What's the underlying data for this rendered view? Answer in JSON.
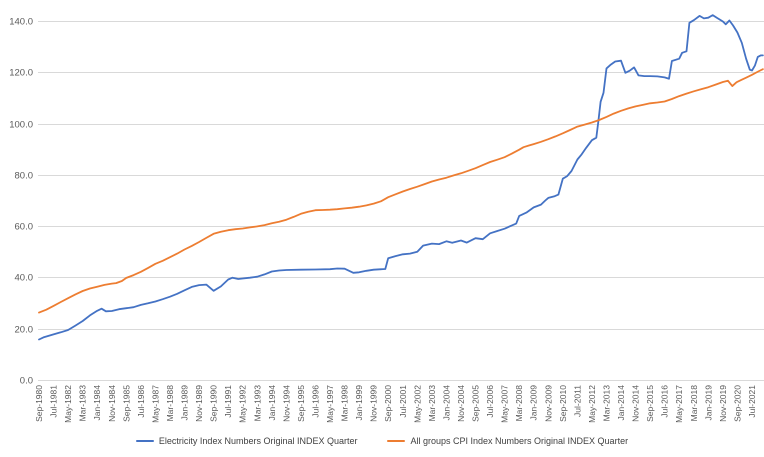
{
  "chart_data": {
    "type": "line",
    "title": "",
    "xlabel": "",
    "ylabel": "",
    "ylim": [
      0,
      140
    ],
    "yticks": [
      0,
      20,
      40,
      60,
      80,
      100,
      120,
      140
    ],
    "ytick_labels": [
      "0.0",
      "20.0",
      "40.0",
      "60.0",
      "80.0",
      "100.0",
      "120.0",
      "140.0"
    ],
    "grid": true,
    "legend_position": "bottom",
    "axis_text_color": "#595959",
    "gridline_color": "#D9D9D9",
    "categories": [
      "Sep-1980",
      "Jul-1981",
      "May-1982",
      "Mar-1983",
      "Jan-1984",
      "Nov-1984",
      "Sep-1985",
      "Jul-1986",
      "May-1987",
      "Mar-1988",
      "Jan-1989",
      "Nov-1989",
      "Sep-1990",
      "Jul-1991",
      "May-1992",
      "Mar-1993",
      "Jan-1994",
      "Nov-1994",
      "Sep-1995",
      "Jul-1996",
      "May-1997",
      "Mar-1998",
      "Jan-1999",
      "Nov-1999",
      "Sep-2000",
      "Jul-2001",
      "May-2002",
      "Mar-2003",
      "Jan-2004",
      "Nov-2004",
      "Sep-2005",
      "Jul-2006",
      "May-2007",
      "Mar-2008",
      "Jan-2009",
      "Nov-2009",
      "Sep-2010",
      "Jul-2011",
      "May-2012",
      "Mar-2013",
      "Jan-2014",
      "Nov-2014",
      "Sep-2015",
      "Jul-2016",
      "May-2017",
      "Mar-2018",
      "Jan-2019",
      "Nov-2019",
      "Sep-2020",
      "Jul-2021"
    ],
    "series": [
      {
        "name": "Electricity Index Numbers Original INDEX Quarter",
        "color": "#4472C4",
        "values": [
          15.8,
          17.8,
          19.5,
          23.0,
          27.0,
          26.9,
          28.0,
          29.3,
          30.6,
          32.5,
          35.0,
          37.0,
          34.8,
          39.2,
          39.6,
          40.3,
          42.3,
          42.9,
          43.0,
          43.1,
          43.2,
          43.4,
          42.0,
          43.0,
          47.5,
          49.0,
          50.0,
          53.2,
          54.1,
          54.4,
          55.3,
          57.2,
          59.0,
          64.0,
          67.3,
          71.0,
          78.5,
          86.0,
          93.5,
          121.5,
          124.5,
          118.8,
          118.5,
          118.0,
          125.3,
          140.3,
          141.3,
          139.8,
          135.5,
          120.7
        ],
        "points": [
          [
            0,
            15.8
          ],
          [
            0.3,
            16.6
          ],
          [
            1,
            17.8
          ],
          [
            1.5,
            18.6
          ],
          [
            2,
            19.5
          ],
          [
            2.5,
            21.2
          ],
          [
            3,
            23.0
          ],
          [
            3.5,
            25.2
          ],
          [
            4,
            27.0
          ],
          [
            4.3,
            27.8
          ],
          [
            4.6,
            26.8
          ],
          [
            5,
            26.9
          ],
          [
            5.5,
            27.6
          ],
          [
            6,
            28.0
          ],
          [
            6.5,
            28.4
          ],
          [
            7,
            29.3
          ],
          [
            7.5,
            29.9
          ],
          [
            8,
            30.6
          ],
          [
            8.5,
            31.5
          ],
          [
            9,
            32.5
          ],
          [
            9.5,
            33.6
          ],
          [
            10,
            35.0
          ],
          [
            10.5,
            36.3
          ],
          [
            11,
            37.0
          ],
          [
            11.5,
            37.2
          ],
          [
            12,
            34.8
          ],
          [
            12.5,
            36.5
          ],
          [
            13,
            39.2
          ],
          [
            13.3,
            39.9
          ],
          [
            13.7,
            39.4
          ],
          [
            14,
            39.6
          ],
          [
            14.5,
            39.9
          ],
          [
            15,
            40.3
          ],
          [
            15.5,
            41.2
          ],
          [
            16,
            42.3
          ],
          [
            16.5,
            42.7
          ],
          [
            17,
            42.9
          ],
          [
            18,
            43.0
          ],
          [
            19,
            43.1
          ],
          [
            20,
            43.2
          ],
          [
            20.5,
            43.5
          ],
          [
            21,
            43.4
          ],
          [
            21.6,
            41.8
          ],
          [
            22,
            42.0
          ],
          [
            22.5,
            42.6
          ],
          [
            23,
            43.0
          ],
          [
            23.8,
            43.3
          ],
          [
            24,
            47.5
          ],
          [
            24.5,
            48.3
          ],
          [
            25,
            49.0
          ],
          [
            25.5,
            49.3
          ],
          [
            26,
            50.0
          ],
          [
            26.4,
            52.4
          ],
          [
            27,
            53.2
          ],
          [
            27.5,
            53.0
          ],
          [
            28,
            54.1
          ],
          [
            28.4,
            53.5
          ],
          [
            29,
            54.4
          ],
          [
            29.4,
            53.6
          ],
          [
            30,
            55.3
          ],
          [
            30.5,
            54.9
          ],
          [
            31,
            57.2
          ],
          [
            31.5,
            58.1
          ],
          [
            32,
            59.0
          ],
          [
            32.5,
            60.3
          ],
          [
            32.8,
            61.0
          ],
          [
            33,
            64.0
          ],
          [
            33.5,
            65.3
          ],
          [
            34,
            67.3
          ],
          [
            34.5,
            68.4
          ],
          [
            34.8,
            70.0
          ],
          [
            35,
            71.0
          ],
          [
            35.4,
            71.6
          ],
          [
            35.7,
            72.3
          ],
          [
            36,
            78.5
          ],
          [
            36.3,
            79.5
          ],
          [
            36.6,
            81.5
          ],
          [
            37,
            86.0
          ],
          [
            37.3,
            88.0
          ],
          [
            37.6,
            90.5
          ],
          [
            38,
            93.5
          ],
          [
            38.3,
            94.5
          ],
          [
            38.45,
            101.0
          ],
          [
            38.6,
            108.5
          ],
          [
            38.8,
            112.0
          ],
          [
            39,
            121.5
          ],
          [
            39.3,
            123.0
          ],
          [
            39.6,
            124.2
          ],
          [
            40,
            124.5
          ],
          [
            40.3,
            119.8
          ],
          [
            40.6,
            120.6
          ],
          [
            40.9,
            121.9
          ],
          [
            41.2,
            118.8
          ],
          [
            41.6,
            118.5
          ],
          [
            42,
            118.5
          ],
          [
            42.5,
            118.4
          ],
          [
            43,
            118.0
          ],
          [
            43.3,
            117.5
          ],
          [
            43.5,
            124.4
          ],
          [
            44,
            125.3
          ],
          [
            44.2,
            127.6
          ],
          [
            44.5,
            128.2
          ],
          [
            44.7,
            139.3
          ],
          [
            45,
            140.3
          ],
          [
            45.4,
            142.0
          ],
          [
            45.7,
            141.0
          ],
          [
            46,
            141.3
          ],
          [
            46.3,
            142.3
          ],
          [
            46.6,
            141.2
          ],
          [
            47,
            139.8
          ],
          [
            47.2,
            138.7
          ],
          [
            47.45,
            140.2
          ],
          [
            47.7,
            138.3
          ],
          [
            48,
            135.5
          ],
          [
            48.3,
            131.5
          ],
          [
            48.6,
            125.3
          ],
          [
            48.85,
            121.0
          ],
          [
            49,
            120.7
          ],
          [
            49.2,
            122.6
          ],
          [
            49.4,
            126.0
          ],
          [
            49.6,
            126.6
          ],
          [
            49.75,
            126.6
          ]
        ]
      },
      {
        "name": "All groups CPI Index Numbers Original INDEX Quarter",
        "color": "#ED7D31",
        "values": [
          26.3,
          28.9,
          31.9,
          34.7,
          36.4,
          37.6,
          39.8,
          42.2,
          45.3,
          47.9,
          50.9,
          53.8,
          57.0,
          58.4,
          59.1,
          59.9,
          61.1,
          62.5,
          64.8,
          66.2,
          66.4,
          66.9,
          67.6,
          68.8,
          71.3,
          73.5,
          75.4,
          77.4,
          78.9,
          80.6,
          82.6,
          85.0,
          86.9,
          89.8,
          92.0,
          93.9,
          96.2,
          98.8,
          100.4,
          102.6,
          105.0,
          106.7,
          107.9,
          108.6,
          110.7,
          112.6,
          114.2,
          116.2,
          116.3,
          119.0
        ],
        "points": [
          [
            0,
            26.3
          ],
          [
            0.5,
            27.4
          ],
          [
            1,
            28.9
          ],
          [
            1.5,
            30.4
          ],
          [
            2,
            31.9
          ],
          [
            2.5,
            33.4
          ],
          [
            3,
            34.7
          ],
          [
            3.5,
            35.7
          ],
          [
            4,
            36.4
          ],
          [
            4.5,
            37.1
          ],
          [
            5,
            37.6
          ],
          [
            5.3,
            37.8
          ],
          [
            5.7,
            38.6
          ],
          [
            6,
            39.8
          ],
          [
            6.5,
            40.9
          ],
          [
            7,
            42.2
          ],
          [
            7.5,
            43.7
          ],
          [
            8,
            45.3
          ],
          [
            8.5,
            46.5
          ],
          [
            9,
            47.9
          ],
          [
            9.5,
            49.3
          ],
          [
            10,
            50.9
          ],
          [
            10.5,
            52.3
          ],
          [
            11,
            53.8
          ],
          [
            11.5,
            55.4
          ],
          [
            12,
            57.0
          ],
          [
            12.5,
            57.8
          ],
          [
            13,
            58.4
          ],
          [
            13.5,
            58.8
          ],
          [
            14,
            59.1
          ],
          [
            14.5,
            59.5
          ],
          [
            15,
            59.9
          ],
          [
            15.5,
            60.4
          ],
          [
            16,
            61.1
          ],
          [
            16.5,
            61.7
          ],
          [
            17,
            62.5
          ],
          [
            17.5,
            63.6
          ],
          [
            18,
            64.8
          ],
          [
            18.5,
            65.6
          ],
          [
            19,
            66.2
          ],
          [
            19.5,
            66.3
          ],
          [
            20,
            66.4
          ],
          [
            20.5,
            66.6
          ],
          [
            21,
            66.9
          ],
          [
            21.5,
            67.2
          ],
          [
            22,
            67.6
          ],
          [
            22.5,
            68.1
          ],
          [
            23,
            68.8
          ],
          [
            23.5,
            69.7
          ],
          [
            24,
            71.3
          ],
          [
            24.5,
            72.4
          ],
          [
            25,
            73.5
          ],
          [
            25.5,
            74.5
          ],
          [
            26,
            75.4
          ],
          [
            26.5,
            76.4
          ],
          [
            27,
            77.4
          ],
          [
            27.5,
            78.2
          ],
          [
            28,
            78.9
          ],
          [
            28.5,
            79.8
          ],
          [
            29,
            80.6
          ],
          [
            29.5,
            81.6
          ],
          [
            30,
            82.6
          ],
          [
            30.5,
            83.8
          ],
          [
            31,
            85.0
          ],
          [
            31.5,
            85.9
          ],
          [
            32,
            86.9
          ],
          [
            32.5,
            88.3
          ],
          [
            33,
            89.8
          ],
          [
            33.3,
            90.8
          ],
          [
            33.7,
            91.5
          ],
          [
            34,
            92.0
          ],
          [
            34.5,
            92.9
          ],
          [
            35,
            93.9
          ],
          [
            35.5,
            95.0
          ],
          [
            36,
            96.2
          ],
          [
            36.5,
            97.5
          ],
          [
            37,
            98.8
          ],
          [
            37.5,
            99.6
          ],
          [
            38,
            100.4
          ],
          [
            38.5,
            101.4
          ],
          [
            39,
            102.6
          ],
          [
            39.5,
            103.9
          ],
          [
            40,
            105.0
          ],
          [
            40.5,
            105.9
          ],
          [
            41,
            106.7
          ],
          [
            41.5,
            107.3
          ],
          [
            42,
            107.9
          ],
          [
            42.5,
            108.2
          ],
          [
            43,
            108.6
          ],
          [
            43.5,
            109.6
          ],
          [
            44,
            110.7
          ],
          [
            44.5,
            111.7
          ],
          [
            45,
            112.6
          ],
          [
            45.5,
            113.4
          ],
          [
            46,
            114.2
          ],
          [
            46.5,
            115.2
          ],
          [
            47,
            116.2
          ],
          [
            47.35,
            116.7
          ],
          [
            47.65,
            114.6
          ],
          [
            47.9,
            115.9
          ],
          [
            48,
            116.3
          ],
          [
            48.3,
            117.1
          ],
          [
            48.6,
            117.9
          ],
          [
            49,
            119.0
          ],
          [
            49.3,
            119.9
          ],
          [
            49.5,
            120.5
          ],
          [
            49.75,
            121.2
          ]
        ]
      }
    ]
  }
}
